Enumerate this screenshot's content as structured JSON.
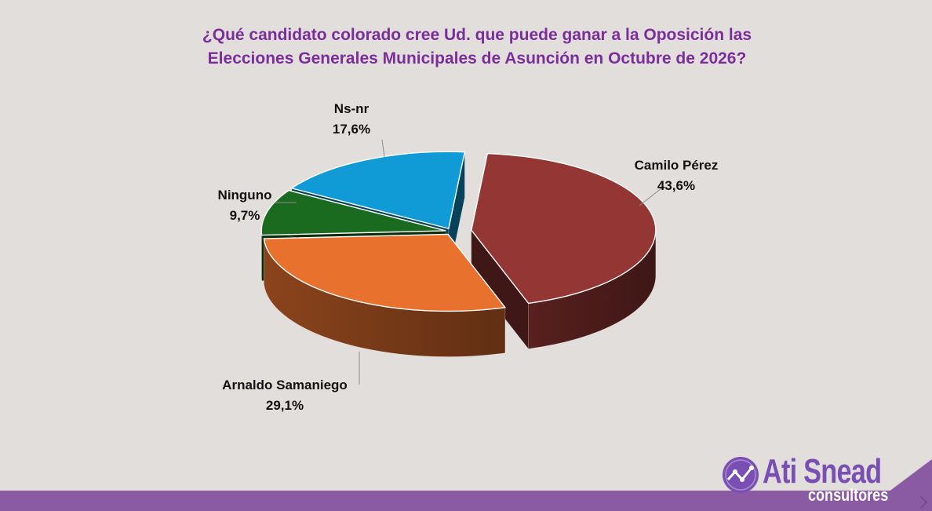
{
  "title_lines": [
    "¿Qué candidato colorado cree Ud. que puede ganar a la Oposición las",
    "Elecciones Generales Municipales de Asunción en Octubre de 2026?"
  ],
  "chart_data": {
    "type": "pie",
    "title": "¿Qué candidato colorado cree Ud. que puede ganar a la Oposición las Elecciones Generales Municipales de Asunción en Octubre de 2026?",
    "style": "3d-exploded",
    "slices": [
      {
        "label": "Camilo Pérez",
        "value": 43.6,
        "display": "43,6%",
        "color": "#943634"
      },
      {
        "label": "Arnaldo Samaniego",
        "value": 29.1,
        "display": "29,1%",
        "color": "#e8712e"
      },
      {
        "label": "Ninguno",
        "value": 9.7,
        "display": "9,7%",
        "color": "#1a6b20"
      },
      {
        "label": "Ns-nr",
        "value": 17.6,
        "display": "17,6%",
        "color": "#109ad6"
      }
    ]
  },
  "brand": {
    "name": "Ati Snead",
    "sub": "consultores"
  },
  "colors": {
    "title": "#7b2d9c",
    "background": "#e2dedc",
    "footer": "#8a5aa3"
  }
}
